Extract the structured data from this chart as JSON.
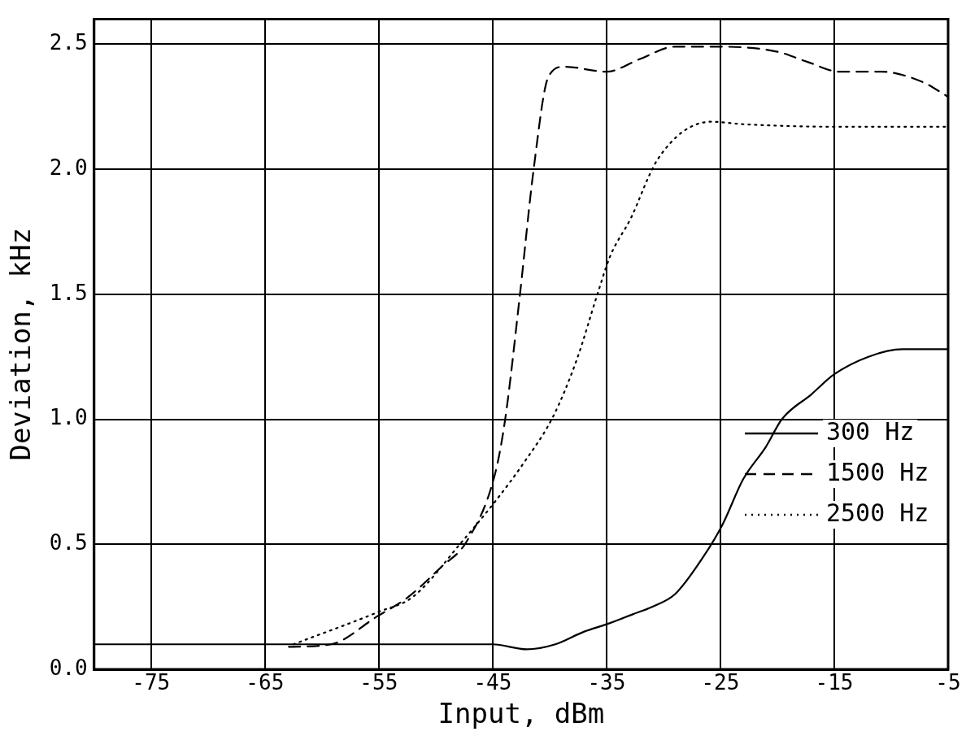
{
  "chart_data": {
    "type": "line",
    "xlabel": "Input, dBm",
    "ylabel": "Deviation, kHz",
    "xlim": [
      -80,
      -5
    ],
    "xticks": [
      -75,
      -65,
      -55,
      -45,
      -35,
      -25,
      -15,
      -5
    ],
    "ylim": [
      0,
      2.6
    ],
    "yticks": [
      {
        "value": 0,
        "label": "0.0"
      },
      {
        "value": 0.5,
        "label": "0.5"
      },
      {
        "value": 1,
        "label": "1.0"
      },
      {
        "value": 1.5,
        "label": "1.5"
      },
      {
        "value": 2,
        "label": "2.0"
      },
      {
        "value": 2.5,
        "label": "2.5"
      }
    ],
    "grid": true,
    "legend": "bottom right",
    "marker": "none",
    "series": [
      {
        "name": "300 Hz",
        "color": "#000000",
        "line_style": "solid",
        "x": [
          -80,
          -60,
          -45,
          -42,
          -39.5,
          -37,
          -35,
          -32.7,
          -31,
          -29,
          -26.5,
          -24.8,
          -23,
          -21,
          -19.6,
          -17,
          -15,
          -12,
          -9,
          -5
        ],
        "values": [
          0.1,
          0.1,
          0.1,
          0.08,
          0.1,
          0.15,
          0.18,
          0.22,
          0.25,
          0.3,
          0.45,
          0.58,
          0.76,
          0.89,
          1.0,
          1.1,
          1.18,
          1.25,
          1.28,
          1.28
        ]
      },
      {
        "name": "1500 Hz",
        "color": "#000000",
        "line_style": "dashed",
        "x": [
          -62.9,
          -59.2,
          -55.2,
          -52.4,
          -49.5,
          -47.3,
          -44.8,
          -43.9,
          -42.6,
          -41.4,
          -40.1,
          -38.7,
          -35,
          -32.1,
          -29,
          -25,
          -20,
          -17.4,
          -14.5,
          -10.9,
          -7.3,
          -5
        ],
        "values": [
          0.09,
          0.1,
          0.21,
          0.29,
          0.41,
          0.51,
          0.78,
          1.0,
          1.5,
          2.0,
          2.37,
          2.41,
          2.39,
          2.44,
          2.49,
          2.49,
          2.47,
          2.43,
          2.39,
          2.39,
          2.35,
          2.29
        ]
      },
      {
        "name": "2500 Hz",
        "color": "#000000",
        "line_style": "dotted",
        "x": [
          -62.5,
          -55,
          -52,
          -47.7,
          -44.8,
          -42.2,
          -39.7,
          -37.6,
          -35.8,
          -34.7,
          -32.8,
          -31.2,
          -30.5,
          -28.3,
          -25.8,
          -23,
          -15,
          -5
        ],
        "values": [
          0.1,
          0.23,
          0.29,
          0.51,
          0.67,
          0.83,
          1.01,
          1.24,
          1.5,
          1.65,
          1.81,
          1.98,
          2.04,
          2.15,
          2.19,
          2.18,
          2.17,
          2.17
        ]
      }
    ]
  }
}
